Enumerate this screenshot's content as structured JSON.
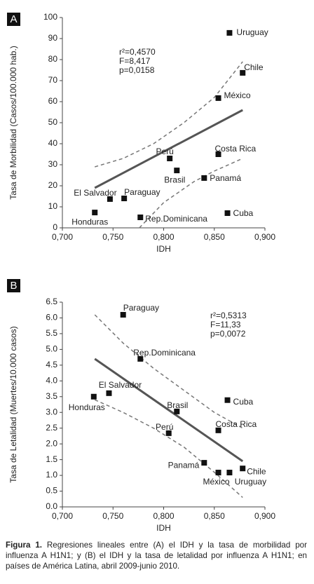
{
  "chart_data": [
    {
      "type": "scatter",
      "panel": "A",
      "xlabel": "IDH",
      "ylabel": "Tasa de Morbilidad (Casos/100.000 hab.)",
      "stats": [
        "r²=0,4570",
        "F=8,417",
        "p=0,0158"
      ],
      "xlim": [
        0.7,
        0.9
      ],
      "xticks": [
        {
          "value": 0.7,
          "label": "0,700"
        },
        {
          "value": 0.75,
          "label": "0,750"
        },
        {
          "value": 0.8,
          "label": "0,800"
        },
        {
          "value": 0.85,
          "label": "0,850"
        },
        {
          "value": 0.9,
          "label": "0,900"
        }
      ],
      "ylim": [
        0,
        100
      ],
      "yticks": [
        0,
        10,
        20,
        30,
        40,
        50,
        60,
        70,
        80,
        90,
        100
      ],
      "points": {
        "labels": [
          "Uruguay",
          "Chile",
          "México",
          "Perú",
          "Costa Rica",
          "Brasil",
          "Panamá",
          "El Salvador",
          "Paraguay",
          "Honduras",
          "Rep.Dominicana",
          "Cuba"
        ],
        "x": [
          0.865,
          0.878,
          0.854,
          0.806,
          0.854,
          0.813,
          0.84,
          0.747,
          0.761,
          0.732,
          0.777,
          0.863
        ],
        "y": [
          92.7,
          73.7,
          61.7,
          33,
          35,
          27.3,
          23.7,
          13.7,
          14,
          7.3,
          5,
          7
        ],
        "color": "#111111"
      },
      "fit": {
        "x": [
          0.732,
          0.878
        ],
        "y": [
          19,
          56
        ],
        "color": "#555555"
      },
      "upper_band": {
        "x": [
          0.732,
          0.76,
          0.79,
          0.82,
          0.85,
          0.878
        ],
        "y": [
          29,
          33,
          40,
          50,
          62,
          79
        ],
        "color": "#777777"
      },
      "lower_band": {
        "x": [
          0.776,
          0.8,
          0.83,
          0.85,
          0.878
        ],
        "y": [
          0,
          12,
          22,
          27,
          33
        ],
        "color": "#777777"
      }
    },
    {
      "type": "scatter",
      "panel": "B",
      "xlabel": "IDH",
      "ylabel": "Tasa de Letalidad (Muertes/10.000 casos)",
      "stats": [
        "r²=0,5313",
        "F=11,33",
        "p=0,0072"
      ],
      "xlim": [
        0.7,
        0.9
      ],
      "xticks": [
        {
          "value": 0.7,
          "label": "0,700"
        },
        {
          "value": 0.75,
          "label": "0,750"
        },
        {
          "value": 0.8,
          "label": "0,800"
        },
        {
          "value": 0.85,
          "label": "0,850"
        },
        {
          "value": 0.9,
          "label": "0,900"
        }
      ],
      "ylim": [
        0,
        6.5
      ],
      "yticks": [
        {
          "value": 0,
          "label": "0.0"
        },
        0.5,
        {
          "value": 1,
          "label": "1.0"
        },
        1.5,
        {
          "value": 2,
          "label": "2.0"
        },
        2.5,
        {
          "value": 3,
          "label": "3.0"
        },
        3.5,
        {
          "value": 4,
          "label": "4.0"
        },
        4.5,
        {
          "value": 5,
          "label": "5.0"
        },
        5.5,
        {
          "value": 6,
          "label": "6.0"
        },
        6.5
      ],
      "points": {
        "labels": [
          "Paraguay",
          "Rep.Dominicana",
          "El Salvador",
          "Honduras",
          "Brasil",
          "Cuba",
          "Costa Rica",
          "Perú",
          "Panamá",
          "México",
          "Uruguay",
          "Chile"
        ],
        "x": [
          0.76,
          0.777,
          0.746,
          0.731,
          0.813,
          0.863,
          0.854,
          0.805,
          0.84,
          0.854,
          0.865,
          0.878
        ],
        "y": [
          6.1,
          4.7,
          3.61,
          3.5,
          3.03,
          3.39,
          2.43,
          2.34,
          1.4,
          1.09,
          1.09,
          1.22
        ],
        "color": "#111111"
      },
      "fit": {
        "x": [
          0.732,
          0.878
        ],
        "y": [
          4.7,
          1.45
        ],
        "color": "#555555"
      },
      "upper_band": {
        "x": [
          0.732,
          0.76,
          0.79,
          0.82,
          0.85,
          0.878
        ],
        "y": [
          6.1,
          5.2,
          4.4,
          3.7,
          3.0,
          2.5
        ],
        "color": "#777777"
      },
      "lower_band": {
        "x": [
          0.732,
          0.76,
          0.79,
          0.82,
          0.85,
          0.878
        ],
        "y": [
          3.4,
          3.0,
          2.5,
          1.9,
          1.1,
          0.3
        ],
        "color": "#777777"
      }
    }
  ],
  "figure": {
    "label": "Figura 1.",
    "caption": "Regresiones lineales entre (A) el IDH y la tasa de morbilidad por influenza A H1N1; y (B) el IDH y la tasa de letalidad por influenza A H1N1; en países de América Latina, abril 2009-junio 2010."
  }
}
